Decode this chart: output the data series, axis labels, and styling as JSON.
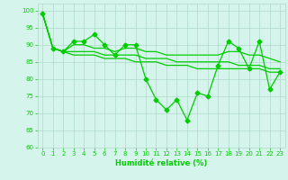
{
  "x": [
    0,
    1,
    2,
    3,
    4,
    5,
    6,
    7,
    8,
    9,
    10,
    11,
    12,
    13,
    14,
    15,
    16,
    17,
    18,
    19,
    20,
    21,
    22,
    23
  ],
  "line_jagged": [
    99,
    89,
    88,
    91,
    91,
    93,
    90,
    87,
    90,
    90,
    80,
    74,
    71,
    74,
    68,
    76,
    75,
    84,
    91,
    89,
    83,
    91,
    77,
    82
  ],
  "line_smooth1": [
    99,
    89,
    88,
    90,
    90,
    89,
    89,
    88,
    89,
    89,
    88,
    88,
    87,
    87,
    87,
    87,
    87,
    87,
    88,
    88,
    87,
    87,
    86,
    85
  ],
  "line_smooth2": [
    99,
    89,
    88,
    88,
    88,
    88,
    87,
    87,
    87,
    87,
    86,
    86,
    86,
    85,
    85,
    85,
    85,
    85,
    85,
    84,
    84,
    84,
    83,
    83
  ],
  "line_smooth3": [
    99,
    89,
    88,
    87,
    87,
    87,
    86,
    86,
    86,
    85,
    85,
    85,
    84,
    84,
    84,
    83,
    83,
    83,
    83,
    83,
    83,
    83,
    82,
    82
  ],
  "line_color": "#00cc00",
  "bg_color": "#d5f5ec",
  "grid_color": "#b0d9cc",
  "xlabel": "Humidité relative (%)",
  "ylim": [
    60,
    102
  ],
  "xlim": [
    -0.5,
    23.5
  ],
  "yticks": [
    60,
    65,
    70,
    75,
    80,
    85,
    90,
    95,
    100
  ],
  "xticks": [
    0,
    1,
    2,
    3,
    4,
    5,
    6,
    7,
    8,
    9,
    10,
    11,
    12,
    13,
    14,
    15,
    16,
    17,
    18,
    19,
    20,
    21,
    22,
    23
  ]
}
